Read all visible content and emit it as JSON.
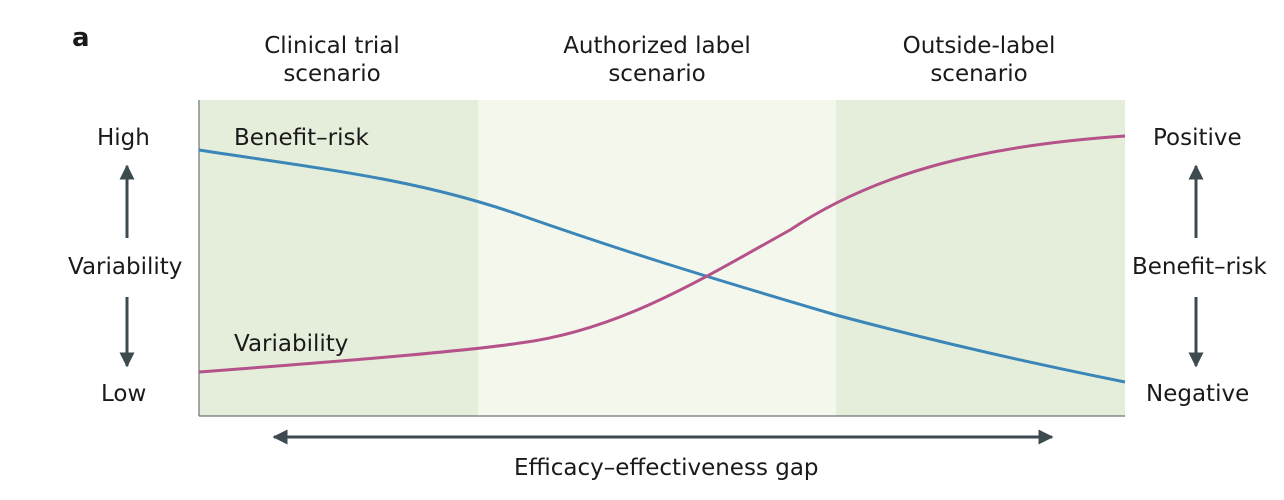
{
  "panel_label": "a",
  "scenarios": [
    {
      "line1": "Clinical trial",
      "line2": "scenario"
    },
    {
      "line1": "Authorized label",
      "line2": "scenario"
    },
    {
      "line1": "Outside-label",
      "line2": "scenario"
    }
  ],
  "left_axis": {
    "high": "High",
    "label": "Variability",
    "low": "Low"
  },
  "right_axis": {
    "high": "Positive",
    "label": "Benefit–risk",
    "low": "Negative"
  },
  "curves": {
    "benefit_risk": "Benefit–risk",
    "variability": "Variability"
  },
  "bottom_axis_label": "Efficacy–effectiveness gap",
  "colors": {
    "benefit_risk_line": "#3a86b8",
    "variability_line": "#b5528a",
    "outer_region": "#e4eedb",
    "middle_region": "#f4f7ec",
    "axis": "#3d4a4f"
  }
}
